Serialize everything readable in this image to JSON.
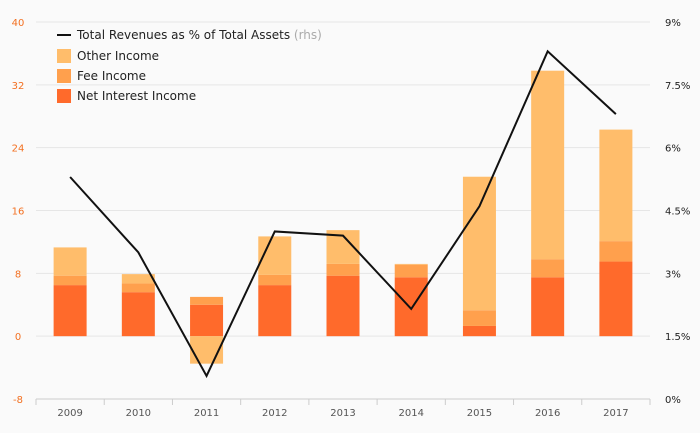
{
  "chart_data": {
    "type": "bar",
    "stacked": true,
    "categories": [
      "2009",
      "2010",
      "2011",
      "2012",
      "2013",
      "2014",
      "2015",
      "2016",
      "2017"
    ],
    "series": [
      {
        "name": "Net Interest Income",
        "color": "#ff6a2b",
        "values": [
          6.5,
          5.6,
          4.0,
          6.5,
          7.7,
          7.5,
          1.3,
          7.5,
          9.5
        ]
      },
      {
        "name": "Fee Income",
        "color": "#ffa04d",
        "values": [
          1.2,
          1.1,
          1.0,
          1.3,
          1.5,
          1.6,
          2.0,
          2.3,
          2.6
        ]
      },
      {
        "name": "Other Income",
        "color": "#ffbd6b",
        "values": [
          3.6,
          1.2,
          -3.5,
          4.9,
          4.3,
          0.1,
          17.0,
          24.0,
          14.2
        ]
      }
    ],
    "line_series": {
      "name": "Total Revenues as % of Total Assets",
      "name_suffix": "(rhs)",
      "color": "#111111",
      "axis": "right",
      "values": [
        5.3,
        3.5,
        0.55,
        4.0,
        3.9,
        2.15,
        4.6,
        8.3,
        6.8
      ]
    },
    "left_axis": {
      "ylim": [
        -8,
        40
      ],
      "ticks": [
        "-8",
        "0",
        "8",
        "16",
        "24",
        "32",
        "40"
      ],
      "tick_values": [
        -8,
        0,
        8,
        16,
        24,
        32,
        40
      ],
      "color": "#f37021"
    },
    "right_axis": {
      "ylim": [
        0,
        9
      ],
      "ticks": [
        "0%",
        "1.5%",
        "3%",
        "4.5%",
        "6%",
        "7.5%",
        "9%"
      ],
      "tick_values": [
        0,
        1.5,
        3,
        4.5,
        6,
        7.5,
        9
      ]
    },
    "legend": {
      "position": "top-left",
      "order": [
        "Total Revenues as % of Total Assets",
        "Other Income",
        "Fee Income",
        "Net Interest Income"
      ]
    },
    "grid": true
  }
}
